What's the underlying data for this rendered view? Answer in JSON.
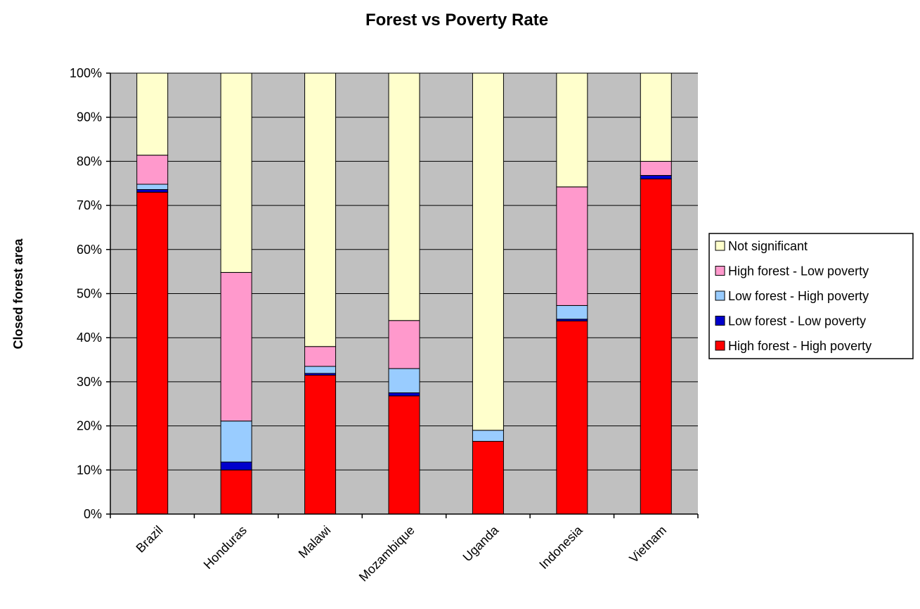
{
  "chart_data": {
    "type": "bar",
    "stacked": "percent",
    "title": "Forest vs Poverty Rate",
    "xlabel": "",
    "ylabel": "Closed forest area",
    "ylim": [
      0,
      100
    ],
    "yticks": [
      "0%",
      "10%",
      "20%",
      "30%",
      "40%",
      "50%",
      "60%",
      "70%",
      "80%",
      "90%",
      "100%"
    ],
    "categories": [
      "Brazil",
      "Honduras",
      "Malawi",
      "Mozambique",
      "Uganda",
      "Indonesia",
      "Vietnam"
    ],
    "series": [
      {
        "name": "High forest - High poverty",
        "color": "#ff0000",
        "values": [
          73,
          10,
          31.5,
          26.8,
          16.5,
          43.8,
          76
        ]
      },
      {
        "name": "Low forest - Low poverty",
        "color": "#0000cc",
        "values": [
          0.6,
          1.8,
          0.4,
          0.7,
          0,
          0.4,
          0.8
        ]
      },
      {
        "name": "Low forest - High poverty",
        "color": "#99ccff",
        "values": [
          1.2,
          9.3,
          1.6,
          5.5,
          2.5,
          3.1,
          0
        ]
      },
      {
        "name": "High forest - Low poverty",
        "color": "#ff99cc",
        "values": [
          6.6,
          33.7,
          4.5,
          10.9,
          0,
          26.9,
          3.2
        ]
      },
      {
        "name": "Not significant",
        "color": "#ffffcc",
        "values": [
          18.6,
          45.2,
          62,
          56.1,
          81,
          25.8,
          20
        ]
      }
    ],
    "legend_order": [
      "Not significant",
      "High forest - Low poverty",
      "Low forest - High poverty",
      "Low forest - Low poverty",
      "High forest - High poverty"
    ],
    "legend_position": "right",
    "grid": true,
    "plot_background": "#c0c0c0"
  }
}
